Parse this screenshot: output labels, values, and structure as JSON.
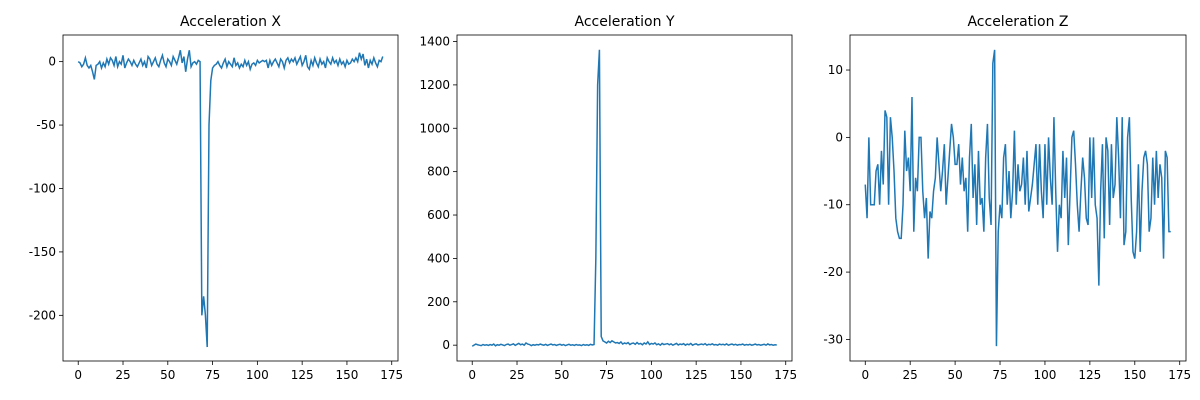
{
  "chart_data": [
    {
      "type": "line",
      "title": "Acceleration X",
      "color": "#1f77b4",
      "x": [
        0,
        1,
        2,
        3,
        4,
        5,
        6,
        7,
        8,
        9,
        10,
        11,
        12,
        13,
        14,
        15,
        16,
        17,
        18,
        19,
        20,
        21,
        22,
        23,
        24,
        25,
        26,
        27,
        28,
        29,
        30,
        31,
        32,
        33,
        34,
        35,
        36,
        37,
        38,
        39,
        40,
        41,
        42,
        43,
        44,
        45,
        46,
        47,
        48,
        49,
        50,
        51,
        52,
        53,
        54,
        55,
        56,
        57,
        58,
        59,
        60,
        61,
        62,
        63,
        64,
        65,
        66,
        67,
        68,
        69,
        70,
        71,
        72,
        73,
        74,
        75,
        76,
        77,
        78,
        79,
        80,
        81,
        82,
        83,
        84,
        85,
        86,
        87,
        88,
        89,
        90,
        91,
        92,
        93,
        94,
        95,
        96,
        97,
        98,
        99,
        100,
        101,
        102,
        103,
        104,
        105,
        106,
        107,
        108,
        109,
        110,
        111,
        112,
        113,
        114,
        115,
        116,
        117,
        118,
        119,
        120,
        121,
        122,
        123,
        124,
        125,
        126,
        127,
        128,
        129,
        130,
        131,
        132,
        133,
        134,
        135,
        136,
        137,
        138,
        139,
        140,
        141,
        142,
        143,
        144,
        145,
        146,
        147,
        148,
        149,
        150,
        151,
        152,
        153,
        154,
        155,
        156,
        157,
        158,
        159,
        160,
        161,
        162,
        163,
        164,
        165,
        166,
        167,
        168,
        169,
        170
      ],
      "values": [
        0,
        -1,
        -4,
        -2,
        3,
        -3,
        -5,
        -3,
        -8,
        -14,
        -3,
        -2,
        0,
        -5,
        -1,
        -4,
        2,
        -2,
        3,
        1,
        -3,
        4,
        -4,
        0,
        -2,
        5,
        -5,
        -1,
        2,
        0,
        -3,
        1,
        -2,
        -4,
        -1,
        2,
        -3,
        0,
        -5,
        4,
        2,
        -3,
        0,
        3,
        -2,
        -4,
        1,
        5,
        -1,
        -4,
        2,
        0,
        -3,
        4,
        1,
        -2,
        3,
        9,
        -1,
        4,
        -8,
        2,
        9,
        -4,
        -1,
        0,
        -2,
        1,
        0,
        -200,
        -185,
        -200,
        -225,
        -50,
        -15,
        -5,
        -3,
        -2,
        0,
        -3,
        -5,
        -1,
        2,
        -4,
        0,
        -2,
        -4,
        3,
        -3,
        -1,
        -5,
        -2,
        -4,
        1,
        -3,
        0,
        -6,
        -2,
        -1,
        -3,
        1,
        -1,
        0,
        1,
        0,
        1,
        -5,
        1,
        -3,
        0,
        2,
        -1,
        -4,
        2,
        0,
        -5,
        1,
        3,
        -1,
        2,
        0,
        3,
        -2,
        1,
        4,
        -3,
        0,
        5,
        -4,
        -6,
        1,
        -3,
        3,
        -1,
        -4,
        2,
        -2,
        0,
        -5,
        3,
        0,
        -2,
        3,
        -1,
        1,
        -3,
        2,
        -2,
        0,
        -4,
        1,
        -2,
        -1,
        2,
        0,
        3,
        0,
        7,
        2,
        6,
        -3,
        2,
        -5,
        1,
        -2,
        3,
        -1,
        -4,
        1,
        0,
        4
      ],
      "xlim": [
        -8.5,
        178.5
      ],
      "ylim": [
        -236,
        21
      ],
      "xticks": [
        0,
        25,
        50,
        75,
        100,
        125,
        150,
        175
      ],
      "yticks": [
        -200,
        -150,
        -100,
        -50,
        0
      ]
    },
    {
      "type": "line",
      "title": "Acceleration Y",
      "color": "#1f77b4",
      "x": [
        0,
        1,
        2,
        3,
        4,
        5,
        6,
        7,
        8,
        9,
        10,
        11,
        12,
        13,
        14,
        15,
        16,
        17,
        18,
        19,
        20,
        21,
        22,
        23,
        24,
        25,
        26,
        27,
        28,
        29,
        30,
        31,
        32,
        33,
        34,
        35,
        36,
        37,
        38,
        39,
        40,
        41,
        42,
        43,
        44,
        45,
        46,
        47,
        48,
        49,
        50,
        51,
        52,
        53,
        54,
        55,
        56,
        57,
        58,
        59,
        60,
        61,
        62,
        63,
        64,
        65,
        66,
        67,
        68,
        69,
        70,
        71,
        72,
        73,
        74,
        75,
        76,
        77,
        78,
        79,
        80,
        81,
        82,
        83,
        84,
        85,
        86,
        87,
        88,
        89,
        90,
        91,
        92,
        93,
        94,
        95,
        96,
        97,
        98,
        99,
        100,
        101,
        102,
        103,
        104,
        105,
        106,
        107,
        108,
        109,
        110,
        111,
        112,
        113,
        114,
        115,
        116,
        117,
        118,
        119,
        120,
        121,
        122,
        123,
        124,
        125,
        126,
        127,
        128,
        129,
        130,
        131,
        132,
        133,
        134,
        135,
        136,
        137,
        138,
        139,
        140,
        141,
        142,
        143,
        144,
        145,
        146,
        147,
        148,
        149,
        150,
        151,
        152,
        153,
        154,
        155,
        156,
        157,
        158,
        159,
        160,
        161,
        162,
        163,
        164,
        165,
        166,
        167,
        168,
        169,
        170
      ],
      "values": [
        -5,
        0,
        5,
        2,
        0,
        -2,
        3,
        0,
        2,
        -1,
        3,
        0,
        5,
        -3,
        2,
        0,
        4,
        1,
        -2,
        3,
        5,
        0,
        3,
        6,
        -1,
        4,
        8,
        2,
        5,
        0,
        10,
        5,
        3,
        -2,
        2,
        0,
        3,
        1,
        5,
        2,
        0,
        4,
        -1,
        2,
        5,
        1,
        3,
        -1,
        2,
        4,
        0,
        3,
        -2,
        1,
        4,
        0,
        2,
        -1,
        3,
        0,
        1,
        -2,
        3,
        0,
        2,
        -1,
        4,
        1,
        3,
        400,
        1200,
        1362,
        40,
        20,
        15,
        10,
        18,
        12,
        20,
        15,
        10,
        12,
        8,
        15,
        5,
        10,
        7,
        12,
        3,
        8,
        10,
        4,
        12,
        5,
        8,
        2,
        10,
        5,
        15,
        3,
        8,
        5,
        10,
        2,
        6,
        0,
        8,
        3,
        5,
        7,
        2,
        6,
        0,
        4,
        8,
        1,
        5,
        3,
        7,
        0,
        5,
        2,
        8,
        0,
        4,
        6,
        1,
        3,
        5,
        2,
        7,
        0,
        4,
        2,
        6,
        1,
        3,
        0,
        5,
        2,
        4,
        1,
        6,
        0,
        3,
        5,
        1,
        4,
        0,
        3,
        2,
        5,
        0,
        3,
        1,
        4,
        0,
        2,
        5,
        1,
        3,
        0,
        2,
        4,
        0,
        6,
        1,
        3,
        0,
        2,
        1
      ],
      "xlim": [
        -8.5,
        178.5
      ],
      "ylim": [
        -73,
        1430
      ],
      "xticks": [
        0,
        25,
        50,
        75,
        100,
        125,
        150,
        175
      ],
      "yticks": [
        0,
        200,
        400,
        600,
        800,
        1000,
        1200,
        1400
      ]
    },
    {
      "type": "line",
      "title": "Acceleration Z",
      "color": "#1f77b4",
      "x": [
        0,
        1,
        2,
        3,
        4,
        5,
        6,
        7,
        8,
        9,
        10,
        11,
        12,
        13,
        14,
        15,
        16,
        17,
        18,
        19,
        20,
        21,
        22,
        23,
        24,
        25,
        26,
        27,
        28,
        29,
        30,
        31,
        32,
        33,
        34,
        35,
        36,
        37,
        38,
        39,
        40,
        41,
        42,
        43,
        44,
        45,
        46,
        47,
        48,
        49,
        50,
        51,
        52,
        53,
        54,
        55,
        56,
        57,
        58,
        59,
        60,
        61,
        62,
        63,
        64,
        65,
        66,
        67,
        68,
        69,
        70,
        71,
        72,
        73,
        74,
        75,
        76,
        77,
        78,
        79,
        80,
        81,
        82,
        83,
        84,
        85,
        86,
        87,
        88,
        89,
        90,
        91,
        92,
        93,
        94,
        95,
        96,
        97,
        98,
        99,
        100,
        101,
        102,
        103,
        104,
        105,
        106,
        107,
        108,
        109,
        110,
        111,
        112,
        113,
        114,
        115,
        116,
        117,
        118,
        119,
        120,
        121,
        122,
        123,
        124,
        125,
        126,
        127,
        128,
        129,
        130,
        131,
        132,
        133,
        134,
        135,
        136,
        137,
        138,
        139,
        140,
        141,
        142,
        143,
        144,
        145,
        146,
        147,
        148,
        149,
        150,
        151,
        152,
        153,
        154,
        155,
        156,
        157,
        158,
        159,
        160,
        161,
        162,
        163,
        164,
        165,
        166,
        167,
        168,
        169,
        170
      ],
      "values": [
        -7,
        -12,
        0,
        -10,
        -10,
        -10,
        -5,
        -4,
        -10,
        -2,
        -7,
        4,
        3,
        -10,
        3,
        0,
        -5,
        -12,
        -14,
        -15,
        -15,
        -10,
        1,
        -5,
        -3,
        -8,
        6,
        -14,
        -6,
        -8,
        0,
        0,
        -8,
        -12,
        -9,
        -18,
        -11,
        -12,
        -8,
        -6,
        0,
        -4,
        -8,
        -5,
        -1,
        -10,
        -6,
        -2,
        2,
        0,
        -4,
        -4,
        -1,
        -7,
        -3,
        -8,
        -6,
        -14,
        -3,
        2,
        -9,
        -4,
        -13,
        -2,
        -10,
        -9,
        -14,
        -3,
        2,
        -9,
        -13,
        11,
        13,
        -31,
        -14,
        -10,
        -12,
        -3,
        -1,
        -10,
        -5,
        -12,
        -8,
        1,
        -10,
        -4,
        -8,
        -7,
        -3,
        -10,
        -2,
        -11,
        -9,
        -7,
        -4,
        -1,
        -10,
        -1,
        -8,
        -12,
        -1,
        -10,
        0,
        -6,
        -10,
        3,
        -8,
        -17,
        -10,
        -12,
        -2,
        -9,
        -3,
        -16,
        -8,
        0,
        1,
        -4,
        -10,
        -14,
        -8,
        -3,
        -6,
        -12,
        -13,
        0,
        -9,
        0,
        -10,
        -12,
        -22,
        -8,
        -1,
        -15,
        0,
        -2,
        -13,
        -1,
        -9,
        -7,
        3,
        -3,
        -12,
        3,
        -16,
        -14,
        0,
        3,
        -9,
        -17,
        -18,
        -14,
        -4,
        -17,
        -8,
        -3,
        -2,
        -4,
        -14,
        -12,
        -3,
        -10,
        -2,
        -9,
        -4,
        -6,
        -18,
        -2,
        -3,
        -14,
        -14
      ],
      "xlim": [
        -8.5,
        178.5
      ],
      "ylim": [
        -33.2,
        15.2
      ],
      "xticks": [
        0,
        25,
        50,
        75,
        100,
        125,
        150,
        175
      ],
      "yticks": [
        -30,
        -20,
        -10,
        0,
        10
      ]
    }
  ]
}
